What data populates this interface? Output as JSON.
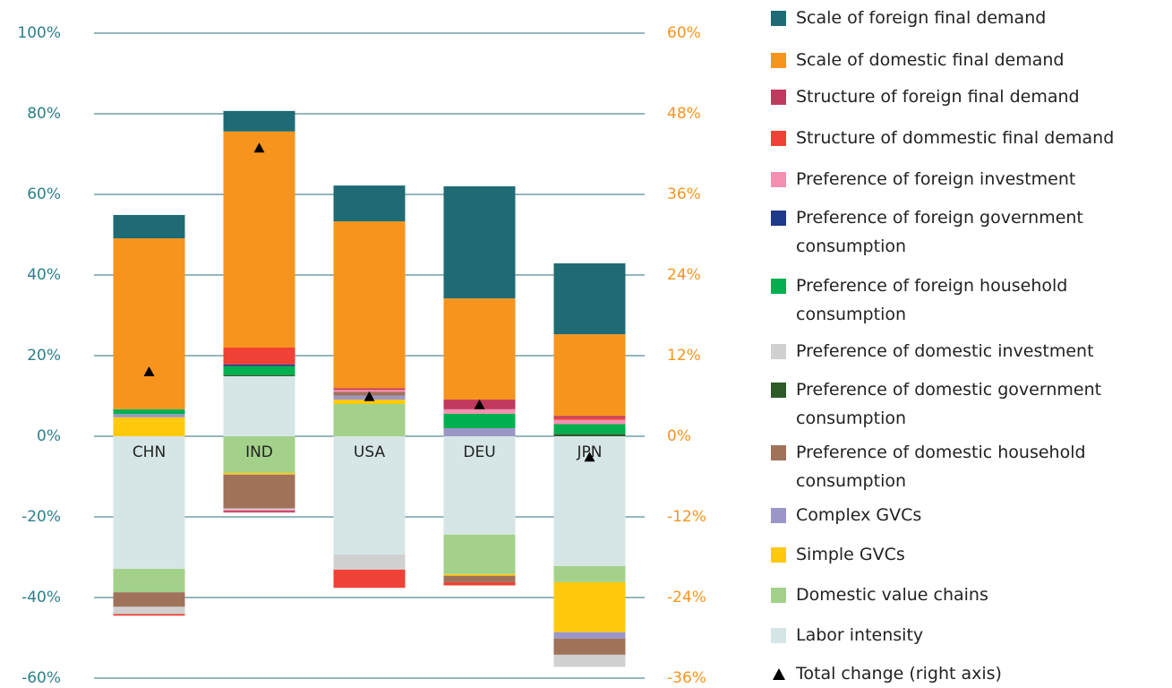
{
  "chart_data": {
    "type": "bar",
    "stacked": true,
    "categories": [
      "CHN",
      "IND",
      "USA",
      "DEU",
      "JPN"
    ],
    "ylim": [
      -60,
      100
    ],
    "yticks": [
      {
        "value": -60,
        "label": "-60%"
      },
      {
        "value": -40,
        "label": "-40%"
      },
      {
        "value": -20,
        "label": "-20%"
      },
      {
        "value": 0,
        "label": "0%"
      },
      {
        "value": 20,
        "label": "20%"
      },
      {
        "value": 40,
        "label": "40%"
      },
      {
        "value": 60,
        "label": "60%"
      },
      {
        "value": 80,
        "label": "80%"
      },
      {
        "value": 100,
        "label": "100%"
      }
    ],
    "y2lim": [
      -36,
      60
    ],
    "y2ticks": [
      {
        "value": -36,
        "label": "-36%"
      },
      {
        "value": -24,
        "label": "-24%"
      },
      {
        "value": -12,
        "label": "-12%"
      },
      {
        "value": 0,
        "label": "0%"
      },
      {
        "value": 12,
        "label": "12%"
      },
      {
        "value": 24,
        "label": "24%"
      },
      {
        "value": 36,
        "label": "36%"
      },
      {
        "value": 48,
        "label": "48%"
      },
      {
        "value": 60,
        "label": "60%"
      }
    ],
    "grid": true,
    "series": [
      {
        "name": "Scale of foreign final demand",
        "color": "#1f6b75",
        "values": [
          5.8,
          5.1,
          8.9,
          27.8,
          17.6
        ]
      },
      {
        "name": "Scale of domestic final demand",
        "color": "#f7941d",
        "values": [
          42.4,
          53.6,
          41.4,
          25.1,
          20.3
        ]
      },
      {
        "name": "Structure of foreign final demand",
        "color": "#c0395e",
        "values": [
          0,
          -0.4,
          0.4,
          2.4,
          0.5
        ]
      },
      {
        "name": "Structure of dommestic final demand",
        "color": "#ef4135",
        "values": [
          -0.4,
          4.2,
          -4.5,
          -0.8,
          0.4
        ]
      },
      {
        "name": "Preference of foreign investment",
        "color": "#f48fb1",
        "values": [
          0,
          -0.3,
          0.5,
          1.1,
          1.1
        ]
      },
      {
        "name": "Preference of foreign government consumption",
        "color": "#1f3a8a",
        "values": [
          0,
          0.4,
          0,
          0,
          0
        ]
      },
      {
        "name": "Preference of foreign household consumption",
        "color": "#00b050",
        "values": [
          1.2,
          2.2,
          0,
          3.6,
          2.4
        ]
      },
      {
        "name": "Preference of domestic investment",
        "color": "#d0d0d0",
        "values": [
          -1.8,
          -0.3,
          -3.8,
          0,
          -3
        ]
      },
      {
        "name": "Preference of domestic government consumption",
        "color": "#2d5a27",
        "values": [
          0,
          0.3,
          0,
          0,
          0.6
        ]
      },
      {
        "name": "Preference of domestic household consumption",
        "color": "#a0725a",
        "values": [
          -3.6,
          -8.4,
          0.9,
          -1.6,
          -4
        ]
      },
      {
        "name": "Complex GVCs",
        "color": "#9b96c8",
        "values": [
          0.8,
          0,
          1,
          2,
          -1.6
        ]
      },
      {
        "name": "Simple GVCs",
        "color": "#ffc90e",
        "values": [
          4.7,
          -0.4,
          1.1,
          -0.4,
          -12.4
        ]
      },
      {
        "name": "Domestic value chains",
        "color": "#a3d18a",
        "values": [
          -5.8,
          -9.1,
          8,
          -9.8,
          -4
        ]
      },
      {
        "name": "Labor intensity",
        "color": "#d6e6e6",
        "values": [
          -32.9,
          14.9,
          -29.3,
          -24.4,
          -32.2
        ]
      },
      {
        "name": "Total change (right axis)",
        "color": "#000000",
        "type": "marker",
        "axis": "y2",
        "values": [
          9.6,
          42.9,
          5.9,
          4.7,
          -3.1
        ]
      }
    ]
  }
}
